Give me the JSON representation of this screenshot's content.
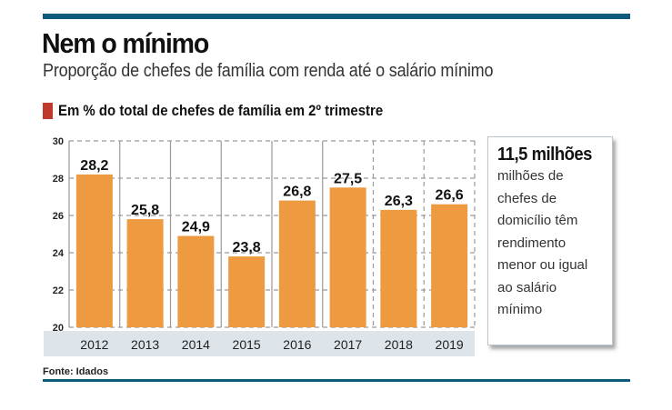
{
  "header": {
    "title": "Nem o mínimo",
    "subtitle": "Proporção de chefes de família com renda até o salário mínimo"
  },
  "legend": {
    "label": "Em % do total de chefes de família em 2º trimestre",
    "color": "#c0392b"
  },
  "info_box": {
    "headline": "11,5 milhões",
    "lines": [
      "milhões de",
      "chefes de",
      "domicílio têm",
      "rendimento",
      "menor ou igual",
      "ao salário",
      "mínimo"
    ]
  },
  "source": "Fonte: Idados",
  "colors": {
    "bar": "#ee9a40",
    "rule": "#0e5a7c",
    "year_band": "#dde4ea",
    "grid": "#9a9a9a"
  },
  "chart_data": {
    "type": "bar",
    "title": "Nem o mínimo",
    "subtitle": "Proporção de chefes de família com renda até o salário mínimo",
    "xlabel": "",
    "ylabel": "Em % do total de chefes de família em 2º trimestre",
    "categories": [
      "2012",
      "2013",
      "2014",
      "2015",
      "2016",
      "2017",
      "2018",
      "2019"
    ],
    "values": [
      28.2,
      25.8,
      24.9,
      23.8,
      26.8,
      27.5,
      26.3,
      26.6
    ],
    "value_labels": [
      "28,2",
      "25,8",
      "24,9",
      "23,8",
      "26,8",
      "27,5",
      "26,3",
      "26,6"
    ],
    "ylim": [
      20,
      30
    ],
    "yticks": [
      20,
      22,
      24,
      26,
      28,
      30
    ],
    "grid": true,
    "legend": "top-left"
  }
}
